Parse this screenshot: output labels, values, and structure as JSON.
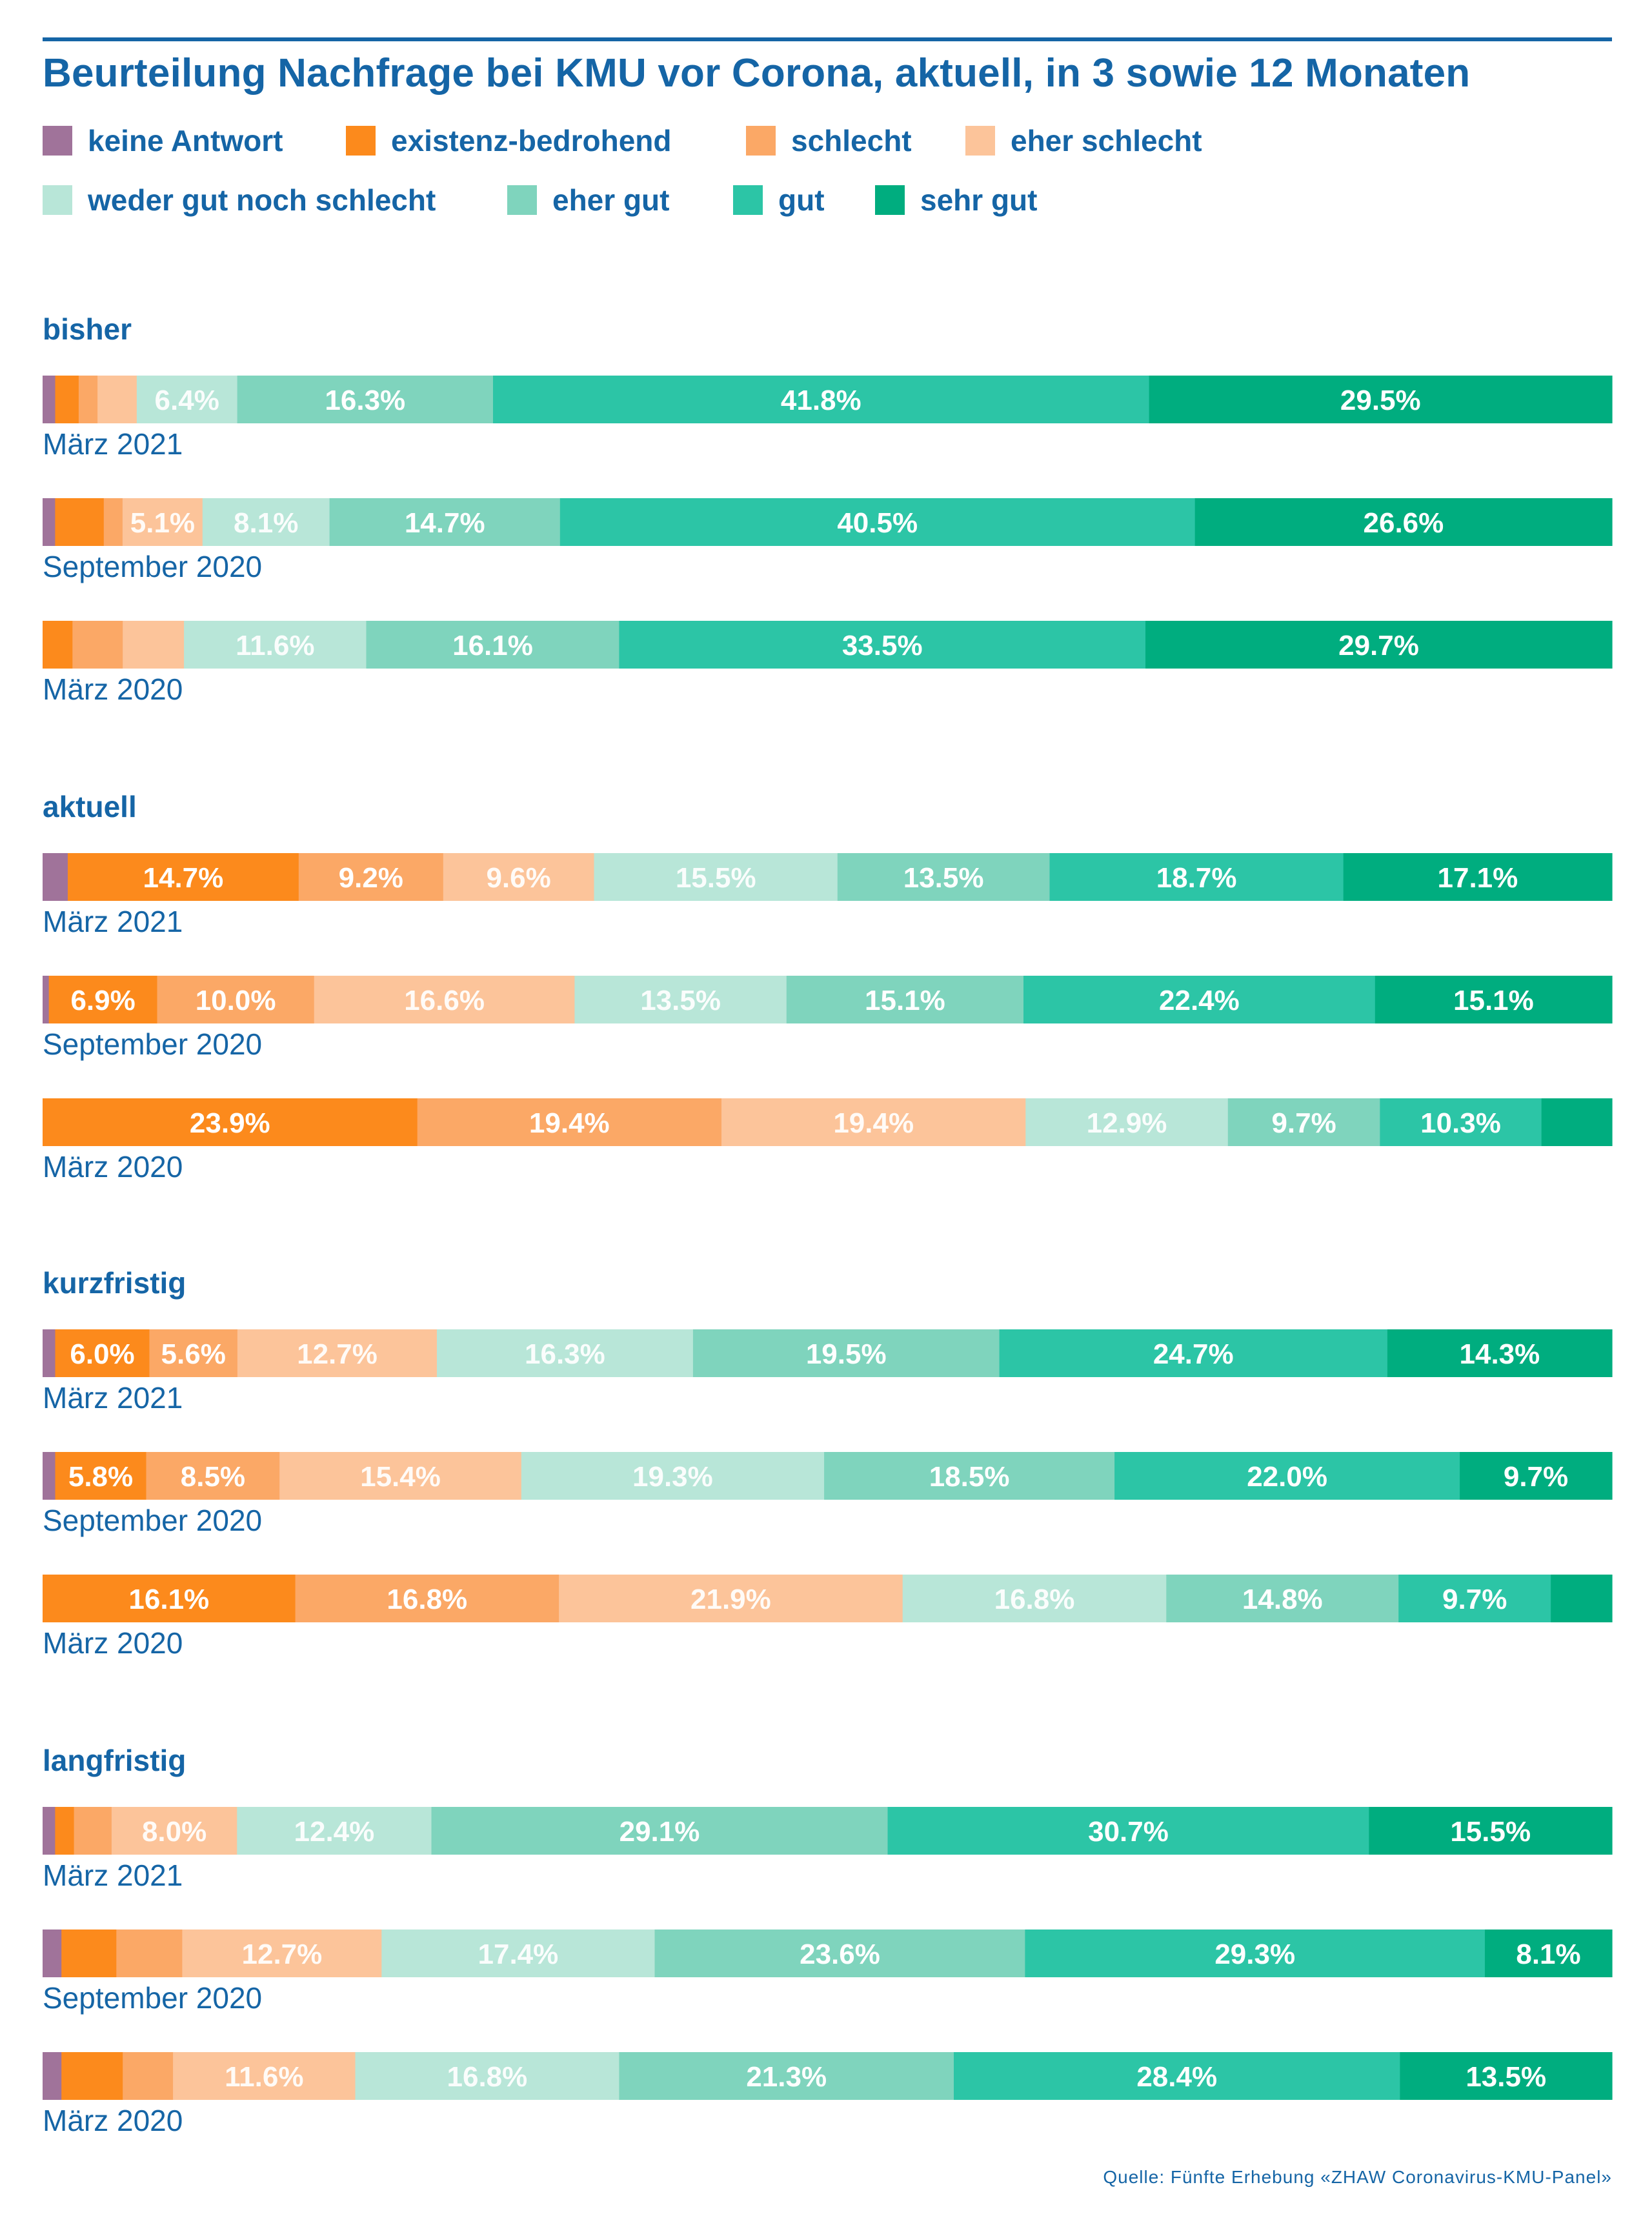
{
  "chart_data": {
    "type": "bar",
    "orientation": "horizontal-stacked-100",
    "title": "Beurteilung Nachfrage bei KMU vor Corona, aktuell, in 3 sowie 12 Monaten",
    "series": [
      {
        "name": "keine Antwort",
        "color": "#a0739a"
      },
      {
        "name": "existenz-bedrohend",
        "color": "#fc8a1c"
      },
      {
        "name": "schlecht",
        "color": "#fba866"
      },
      {
        "name": "eher schlecht",
        "color": "#fcc49a"
      },
      {
        "name": "weder gut noch schlecht",
        "color": "#b8e6d8"
      },
      {
        "name": "eher gut",
        "color": "#7fd4bd"
      },
      {
        "name": "gut",
        "color": "#2cc5a6"
      },
      {
        "name": "sehr gut",
        "color": "#00ad7f"
      }
    ],
    "groups": [
      {
        "label": "bisher",
        "bars": [
          {
            "label": "März 2021",
            "values": [
              0.8,
              1.5,
              1.2,
              2.5,
              6.4,
              16.3,
              41.8,
              29.5
            ]
          },
          {
            "label": "September 2020",
            "values": [
              0.8,
              3.1,
              1.2,
              5.1,
              8.1,
              14.7,
              40.5,
              26.6
            ]
          },
          {
            "label": "März 2020",
            "values": [
              0,
              1.9,
              3.2,
              3.9,
              11.6,
              16.1,
              33.5,
              29.7
            ]
          }
        ]
      },
      {
        "label": "aktuell",
        "bars": [
          {
            "label": "März 2021",
            "values": [
              1.6,
              14.7,
              9.2,
              9.6,
              15.5,
              13.5,
              18.7,
              17.1
            ]
          },
          {
            "label": "September 2020",
            "values": [
              0.4,
              6.9,
              10.0,
              16.6,
              13.5,
              15.1,
              22.4,
              15.1
            ]
          },
          {
            "label": "März 2020",
            "values": [
              0,
              23.9,
              19.4,
              19.4,
              12.9,
              9.7,
              10.3,
              4.5
            ]
          }
        ]
      },
      {
        "label": "kurzfristig",
        "bars": [
          {
            "label": "März 2021",
            "values": [
              0.8,
              6.0,
              5.6,
              12.7,
              16.3,
              19.5,
              24.7,
              14.3
            ]
          },
          {
            "label": "September 2020",
            "values": [
              0.8,
              5.8,
              8.5,
              15.4,
              19.3,
              18.5,
              22.0,
              9.7
            ]
          },
          {
            "label": "März 2020",
            "values": [
              0,
              16.1,
              16.8,
              21.9,
              16.8,
              14.8,
              9.7,
              3.9
            ]
          }
        ]
      },
      {
        "label": "langfristig",
        "bars": [
          {
            "label": "März 2021",
            "values": [
              0.8,
              1.2,
              2.4,
              8.0,
              12.4,
              29.1,
              30.7,
              15.5
            ]
          },
          {
            "label": "September 2020",
            "values": [
              1.2,
              3.5,
              4.2,
              12.7,
              17.4,
              23.6,
              29.3,
              8.1
            ]
          },
          {
            "label": "März 2020",
            "values": [
              1.2,
              3.9,
              3.2,
              11.6,
              16.8,
              21.3,
              28.4,
              13.5
            ]
          }
        ]
      }
    ],
    "value_format": "%.1f%",
    "legend_position": "top-left",
    "xlim": [
      0,
      100
    ],
    "source": "Quelle: Fünfte Erhebung «ZHAW Coronavirus-KMU-Panel»"
  }
}
